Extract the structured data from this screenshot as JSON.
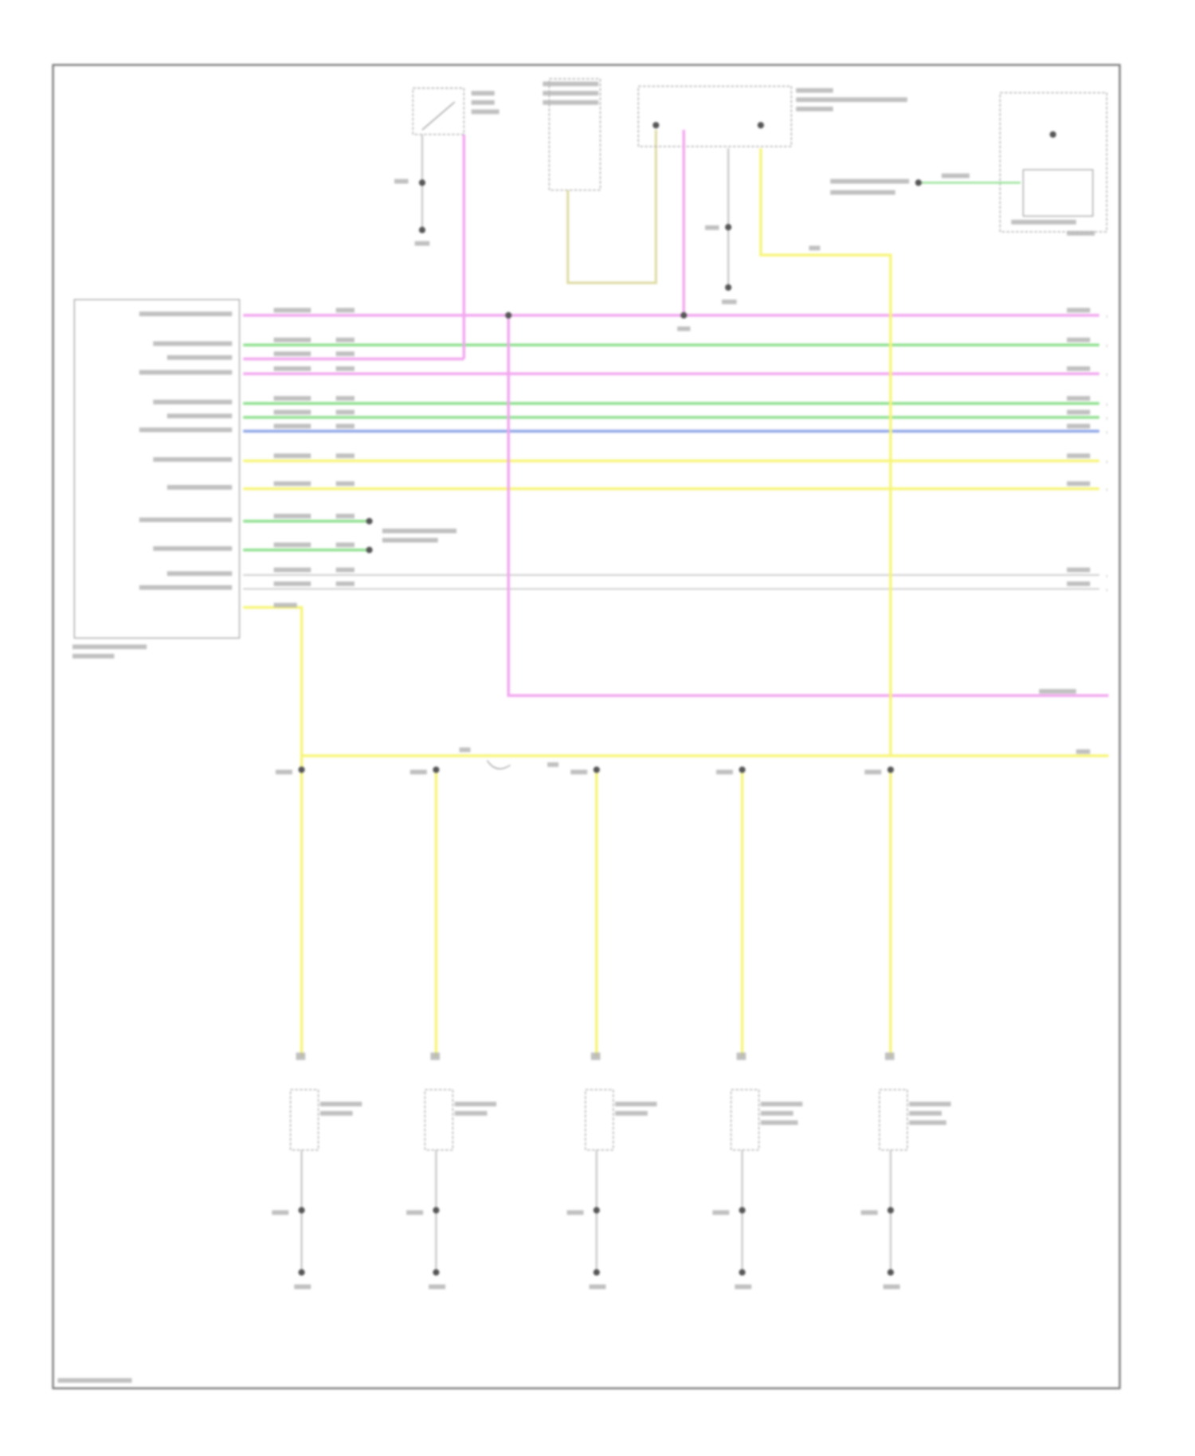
{
  "diagram": {
    "wire_colors": {
      "pink": "#f2a6ef",
      "green": "#8fe08f",
      "blue": "#8fa6e6",
      "yellow": "#f7f57a",
      "grey": "#c8c8c8",
      "tan": "#ddd9a0"
    },
    "frame_color": "#9a9a9a",
    "label_color": "#b0b0b0",
    "components": [
      {
        "id": "body-control-module"
      },
      {
        "id": "top-switch"
      },
      {
        "id": "top-sensor"
      },
      {
        "id": "dual-switch"
      },
      {
        "id": "right-module"
      },
      {
        "id": "sensor-1"
      },
      {
        "id": "sensor-2"
      },
      {
        "id": "sensor-3"
      },
      {
        "id": "sensor-4"
      },
      {
        "id": "sensor-5"
      }
    ],
    "note": "Labels in the source image are too blurred to read and are rendered as illegible marks."
  }
}
